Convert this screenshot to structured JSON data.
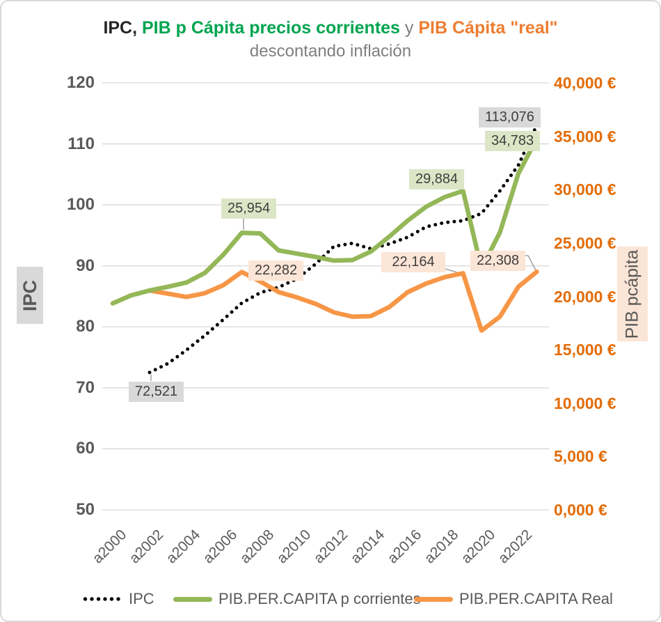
{
  "title": {
    "part1": "IPC,",
    "part2": " PIB p Cápita precios corrientes",
    "part3": " y ",
    "part4": "PIB Cápita \"real\"",
    "line2": "descontando inflación"
  },
  "colors": {
    "title_green": "#00a44f",
    "title_orange": "#ed7d31",
    "title_gray": "#7f7f7f",
    "line_green": "#94b758",
    "line_orange": "#f79646",
    "line_ipc": "#000000",
    "right_axis_text": "#e36c09",
    "left_axis_text": "#595959",
    "gridline": "#d6d6d6",
    "leader": "#a6a6a6",
    "label_bg_gray": "#d9d9d9",
    "label_bg_green": "#dce6c6",
    "label_bg_peach": "#fbe5d6"
  },
  "left_axis": {
    "title": "IPC",
    "ticks": [
      {
        "label": "120",
        "value": 120
      },
      {
        "label": "110",
        "value": 110
      },
      {
        "label": "100",
        "value": 100
      },
      {
        "label": "90",
        "value": 90
      },
      {
        "label": "80",
        "value": 80
      },
      {
        "label": "70",
        "value": 70
      },
      {
        "label": "60",
        "value": 60
      },
      {
        "label": "50",
        "value": 50
      }
    ]
  },
  "right_axis": {
    "title": "PIB pcápita",
    "ticks": [
      {
        "label": "40,000 €",
        "value": 40000
      },
      {
        "label": "35,000 €",
        "value": 35000
      },
      {
        "label": "30,000 €",
        "value": 30000
      },
      {
        "label": "25,000 €",
        "value": 25000
      },
      {
        "label": "20,000 €",
        "value": 20000
      },
      {
        "label": "15,000 €",
        "value": 15000
      },
      {
        "label": "10,000 €",
        "value": 10000
      },
      {
        "label": "5,000 €",
        "value": 5000
      },
      {
        "label": "0,000 €",
        "value": 0
      }
    ]
  },
  "x_axis": {
    "labels": [
      {
        "label": "a2000",
        "year": 2000
      },
      {
        "label": "a2002",
        "year": 2002
      },
      {
        "label": "a2004",
        "year": 2004
      },
      {
        "label": "a2006",
        "year": 2006
      },
      {
        "label": "a2008",
        "year": 2008
      },
      {
        "label": "a2010",
        "year": 2010
      },
      {
        "label": "a2012",
        "year": 2012
      },
      {
        "label": "a2014",
        "year": 2014
      },
      {
        "label": "a2016",
        "year": 2016
      },
      {
        "label": "a2018",
        "year": 2018
      },
      {
        "label": "a2020",
        "year": 2020
      },
      {
        "label": "a2022",
        "year": 2022
      }
    ]
  },
  "legend": {
    "items": [
      {
        "label": "IPC",
        "swatch": "dotted",
        "color": "#000000"
      },
      {
        "label": "PIB.PER.CAPITA p corrientes",
        "swatch": "line",
        "color": "#94b758"
      },
      {
        "label": "PIB.PER.CAPITA Real",
        "swatch": "line",
        "color": "#f79646"
      }
    ]
  },
  "annotations": {
    "ipc2002": {
      "text": "72,521"
    },
    "ipc2023": {
      "text": "113,076"
    },
    "pib2007": {
      "text": "25,954"
    },
    "pib2019": {
      "text": "29,884"
    },
    "pib2023": {
      "text": "34,783"
    },
    "real2007": {
      "text": "22,282"
    },
    "real2019": {
      "text": "22,164"
    },
    "real2023": {
      "text": "22,308"
    }
  },
  "chart_data": {
    "type": "line",
    "title": "IPC, PIB p Cápita precios corrientes y PIB Cápita \"real\" descontando inflación",
    "x_range": [
      2000,
      2023
    ],
    "left_axis_label": "IPC",
    "left_ylim": [
      50,
      120
    ],
    "right_axis_label": "PIB pcápita",
    "right_ylim": [
      0,
      40000
    ],
    "grid": "horizontal",
    "legend_position": "bottom",
    "series": [
      {
        "name": "IPC",
        "axis": "left",
        "style": "dotted",
        "color": "#000000",
        "zorder": 1,
        "years": [
          2002,
          2003,
          2004,
          2005,
          2006,
          2007,
          2008,
          2009,
          2010,
          2011,
          2012,
          2013,
          2014,
          2015,
          2016,
          2017,
          2018,
          2019,
          2020,
          2021,
          2022,
          2023
        ],
        "values": [
          72.521,
          74.0,
          76.2,
          78.6,
          81.2,
          83.9,
          85.6,
          86.5,
          87.9,
          90.3,
          93.2,
          93.7,
          92.8,
          93.6,
          94.7,
          96.4,
          97.1,
          97.4,
          98.6,
          102.3,
          106.5,
          113.076
        ]
      },
      {
        "name": "PIB.PER.CAPITA p corrientes",
        "axis": "right",
        "style": "solid",
        "color": "#94b758",
        "zorder": 3,
        "years": [
          2000,
          2001,
          2002,
          2003,
          2004,
          2005,
          2006,
          2007,
          2008,
          2009,
          2010,
          2011,
          2012,
          2013,
          2014,
          2015,
          2016,
          2017,
          2018,
          2019,
          2020,
          2021,
          2022,
          2023
        ],
        "values": [
          19350,
          20100,
          20550,
          20900,
          21300,
          22200,
          23900,
          25954,
          25900,
          24300,
          24000,
          23700,
          23350,
          23400,
          24200,
          25600,
          27100,
          28400,
          29300,
          29884,
          22600,
          26000,
          31500,
          34783
        ]
      },
      {
        "name": "PIB.PER.CAPITA Real",
        "axis": "right",
        "style": "solid",
        "color": "#f79646",
        "zorder": 2,
        "years": [
          2002,
          2003,
          2004,
          2005,
          2006,
          2007,
          2008,
          2009,
          2010,
          2011,
          2012,
          2013,
          2014,
          2015,
          2016,
          2017,
          2018,
          2019,
          2020,
          2021,
          2022,
          2023
        ],
        "values": [
          20550,
          20250,
          19950,
          20300,
          21050,
          22282,
          21400,
          20400,
          19900,
          19300,
          18500,
          18100,
          18150,
          19000,
          20400,
          21200,
          21800,
          22164,
          16800,
          18100,
          20900,
          22308
        ]
      }
    ],
    "data_labels": [
      {
        "series": "IPC",
        "year": 2002,
        "value": 72.521,
        "text": "72,521"
      },
      {
        "series": "IPC",
        "year": 2023,
        "value": 113.076,
        "text": "113,076"
      },
      {
        "series": "PIB.PER.CAPITA p corrientes",
        "year": 2007,
        "value": 25954,
        "text": "25,954"
      },
      {
        "series": "PIB.PER.CAPITA p corrientes",
        "year": 2019,
        "value": 29884,
        "text": "29,884"
      },
      {
        "series": "PIB.PER.CAPITA p corrientes",
        "year": 2023,
        "value": 34783,
        "text": "34,783"
      },
      {
        "series": "PIB.PER.CAPITA Real",
        "year": 2007,
        "value": 22282,
        "text": "22,282"
      },
      {
        "series": "PIB.PER.CAPITA Real",
        "year": 2019,
        "value": 22164,
        "text": "22,164"
      },
      {
        "series": "PIB.PER.CAPITA Real",
        "year": 2023,
        "value": 22308,
        "text": "22,308"
      }
    ]
  }
}
